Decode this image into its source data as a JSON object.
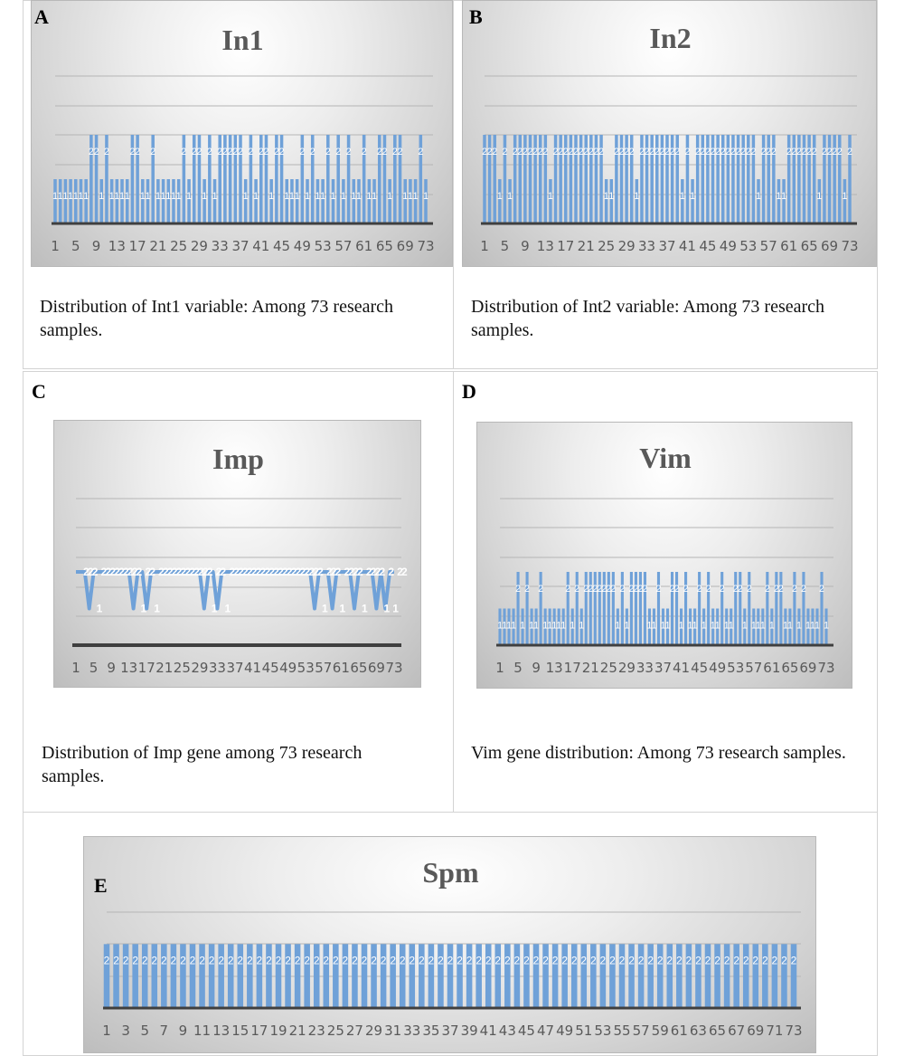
{
  "figure": {
    "panels": [
      {
        "letter": "A",
        "caption": "Distribution of Int1 variable: Among 73 research samples."
      },
      {
        "letter": "B",
        "caption": "Distribution of Int2 variable: Among 73 research samples."
      },
      {
        "letter": "C",
        "caption": "Distribution of Imp gene among 73 research samples."
      },
      {
        "letter": "D",
        "caption": "Vim gene distribution: Among 73 research samples."
      },
      {
        "letter": "E",
        "caption": ""
      }
    ]
  },
  "chart_data": [
    {
      "type": "bar",
      "title": "In1",
      "xlabel": "",
      "ylabel": "",
      "ylim": [
        0,
        4
      ],
      "grid": true,
      "x_ticks": [
        "1",
        "5",
        "9",
        "13",
        "17",
        "21",
        "25",
        "29",
        "33",
        "37",
        "41",
        "45",
        "49",
        "53",
        "57",
        "61",
        "65",
        "69",
        "73"
      ],
      "series": [
        {
          "color": "#6fa1d8",
          "values": [
            1,
            1,
            1,
            1,
            1,
            1,
            1,
            2,
            2,
            1,
            2,
            1,
            1,
            1,
            1,
            2,
            2,
            1,
            1,
            2,
            1,
            1,
            1,
            1,
            1,
            2,
            1,
            2,
            2,
            1,
            2,
            1,
            2,
            2,
            2,
            2,
            2,
            1,
            2,
            1,
            2,
            2,
            1,
            2,
            2,
            1,
            1,
            1,
            2,
            1,
            2,
            1,
            1,
            2,
            1,
            2,
            1,
            2,
            1,
            1,
            2,
            1,
            1,
            2,
            2,
            1,
            2,
            2,
            1,
            1,
            1,
            2,
            1
          ]
        }
      ]
    },
    {
      "type": "bar",
      "title": "In2",
      "xlabel": "",
      "ylabel": "",
      "ylim": [
        0,
        4
      ],
      "grid": true,
      "x_ticks": [
        "1",
        "5",
        "9",
        "13",
        "17",
        "21",
        "25",
        "29",
        "33",
        "37",
        "41",
        "45",
        "49",
        "53",
        "57",
        "61",
        "65",
        "69",
        "73"
      ],
      "series": [
        {
          "color": "#6fa1d8",
          "values": [
            2,
            2,
            2,
            1,
            2,
            1,
            2,
            2,
            2,
            2,
            2,
            2,
            2,
            1,
            2,
            2,
            2,
            2,
            2,
            2,
            2,
            2,
            2,
            2,
            1,
            1,
            2,
            2,
            2,
            2,
            1,
            2,
            2,
            2,
            2,
            2,
            2,
            2,
            2,
            1,
            2,
            1,
            2,
            2,
            2,
            2,
            2,
            2,
            2,
            2,
            2,
            2,
            2,
            2,
            1,
            2,
            2,
            2,
            1,
            1,
            2,
            2,
            2,
            2,
            2,
            2,
            1,
            2,
            2,
            2,
            2,
            1,
            2
          ]
        }
      ]
    },
    {
      "type": "line",
      "title": "Imp",
      "xlabel": "",
      "ylabel": "",
      "ylim": [
        0,
        4
      ],
      "grid": true,
      "x_ticks": [
        "1",
        "5",
        "9",
        "13",
        "17",
        "21",
        "25",
        "29",
        "33",
        "37",
        "41",
        "45",
        "49",
        "53",
        "57",
        "61",
        "65",
        "69",
        "73"
      ],
      "series": [
        {
          "color": "#6fa1d8",
          "values": [
            2,
            2,
            2,
            1,
            2,
            2,
            2,
            2,
            2,
            2,
            2,
            2,
            2,
            1,
            2,
            2,
            1,
            2,
            2,
            2,
            2,
            2,
            2,
            2,
            2,
            2,
            2,
            2,
            2,
            1,
            2,
            2,
            1,
            2,
            2,
            2,
            2,
            2,
            2,
            2,
            2,
            2,
            2,
            2,
            2,
            2,
            2,
            2,
            2,
            2,
            2,
            2,
            2,
            2,
            1,
            2,
            2,
            2,
            1,
            2,
            2,
            2,
            2,
            1,
            2,
            2,
            2,
            2,
            1,
            2,
            1,
            2,
            2
          ]
        }
      ]
    },
    {
      "type": "bar",
      "title": "Vim",
      "xlabel": "",
      "ylabel": "",
      "ylim": [
        0,
        4
      ],
      "grid": true,
      "x_ticks": [
        "1",
        "5",
        "9",
        "13",
        "17",
        "21",
        "25",
        "29",
        "33",
        "37",
        "41",
        "45",
        "49",
        "53",
        "57",
        "61",
        "65",
        "69",
        "73"
      ],
      "series": [
        {
          "color": "#6fa1d8",
          "values": [
            1,
            1,
            1,
            1,
            2,
            1,
            2,
            1,
            1,
            2,
            1,
            1,
            1,
            1,
            1,
            2,
            1,
            2,
            1,
            2,
            2,
            2,
            2,
            2,
            2,
            2,
            1,
            2,
            1,
            2,
            2,
            2,
            2,
            1,
            1,
            2,
            1,
            1,
            2,
            2,
            1,
            2,
            1,
            1,
            2,
            1,
            2,
            1,
            1,
            2,
            1,
            1,
            2,
            2,
            1,
            2,
            1,
            1,
            1,
            2,
            1,
            2,
            2,
            1,
            1,
            2,
            1,
            2,
            1,
            1,
            1,
            2,
            1
          ]
        }
      ]
    },
    {
      "type": "bar",
      "title": "Spm",
      "xlabel": "",
      "ylabel": "",
      "ylim": [
        0,
        3
      ],
      "grid": true,
      "x_ticks": [
        "1",
        "3",
        "5",
        "7",
        "9",
        "11",
        "13",
        "15",
        "17",
        "19",
        "21",
        "23",
        "25",
        "27",
        "29",
        "31",
        "33",
        "35",
        "37",
        "39",
        "41",
        "43",
        "45",
        "47",
        "49",
        "51",
        "53",
        "55",
        "57",
        "59",
        "61",
        "63",
        "65",
        "67",
        "69",
        "71",
        "73"
      ],
      "series": [
        {
          "color": "#6fa1d8",
          "values": [
            2,
            2,
            2,
            2,
            2,
            2,
            2,
            2,
            2,
            2,
            2,
            2,
            2,
            2,
            2,
            2,
            2,
            2,
            2,
            2,
            2,
            2,
            2,
            2,
            2,
            2,
            2,
            2,
            2,
            2,
            2,
            2,
            2,
            2,
            2,
            2,
            2,
            2,
            2,
            2,
            2,
            2,
            2,
            2,
            2,
            2,
            2,
            2,
            2,
            2,
            2,
            2,
            2,
            2,
            2,
            2,
            2,
            2,
            2,
            2,
            2,
            2,
            2,
            2,
            2,
            2,
            2,
            2,
            2,
            2,
            2,
            2,
            2
          ]
        }
      ]
    }
  ]
}
